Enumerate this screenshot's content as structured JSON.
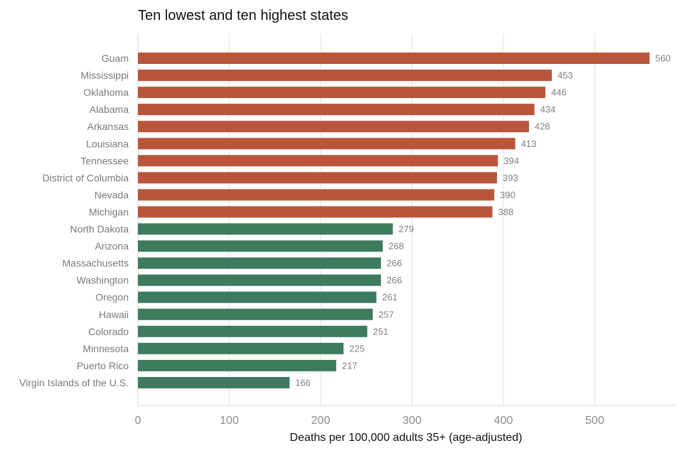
{
  "chart_data": {
    "type": "bar",
    "orientation": "horizontal",
    "title": "Ten lowest and ten highest states",
    "xlabel": "Deaths per 100,000 adults 35+ (age-adjusted)",
    "ylabel": "",
    "xlim": [
      0,
      590
    ],
    "xticks": [
      0,
      100,
      200,
      300,
      400,
      500
    ],
    "grid": "vertical",
    "colors": {
      "highest": "#b9553b",
      "lowest": "#3d7a5e"
    },
    "categories": [
      "Guam",
      "Mississippi",
      "Oklahoma",
      "Alabama",
      "Arkansas",
      "Louisiana",
      "Tennessee",
      "District of Columbia",
      "Nevada",
      "Michigan",
      "North Dakota",
      "Arizona",
      "Massachusetts",
      "Washington",
      "Oregon",
      "Hawaii",
      "Colorado",
      "Minnesota",
      "Puerto Rico",
      "Virgin Islands of the U.S."
    ],
    "values": [
      560,
      453,
      446,
      434,
      428,
      413,
      394,
      393,
      390,
      388,
      279,
      268,
      266,
      266,
      261,
      257,
      251,
      225,
      217,
      166
    ],
    "groups": [
      "highest",
      "highest",
      "highest",
      "highest",
      "highest",
      "highest",
      "highest",
      "highest",
      "highest",
      "highest",
      "lowest",
      "lowest",
      "lowest",
      "lowest",
      "lowest",
      "lowest",
      "lowest",
      "lowest",
      "lowest",
      "lowest"
    ]
  }
}
